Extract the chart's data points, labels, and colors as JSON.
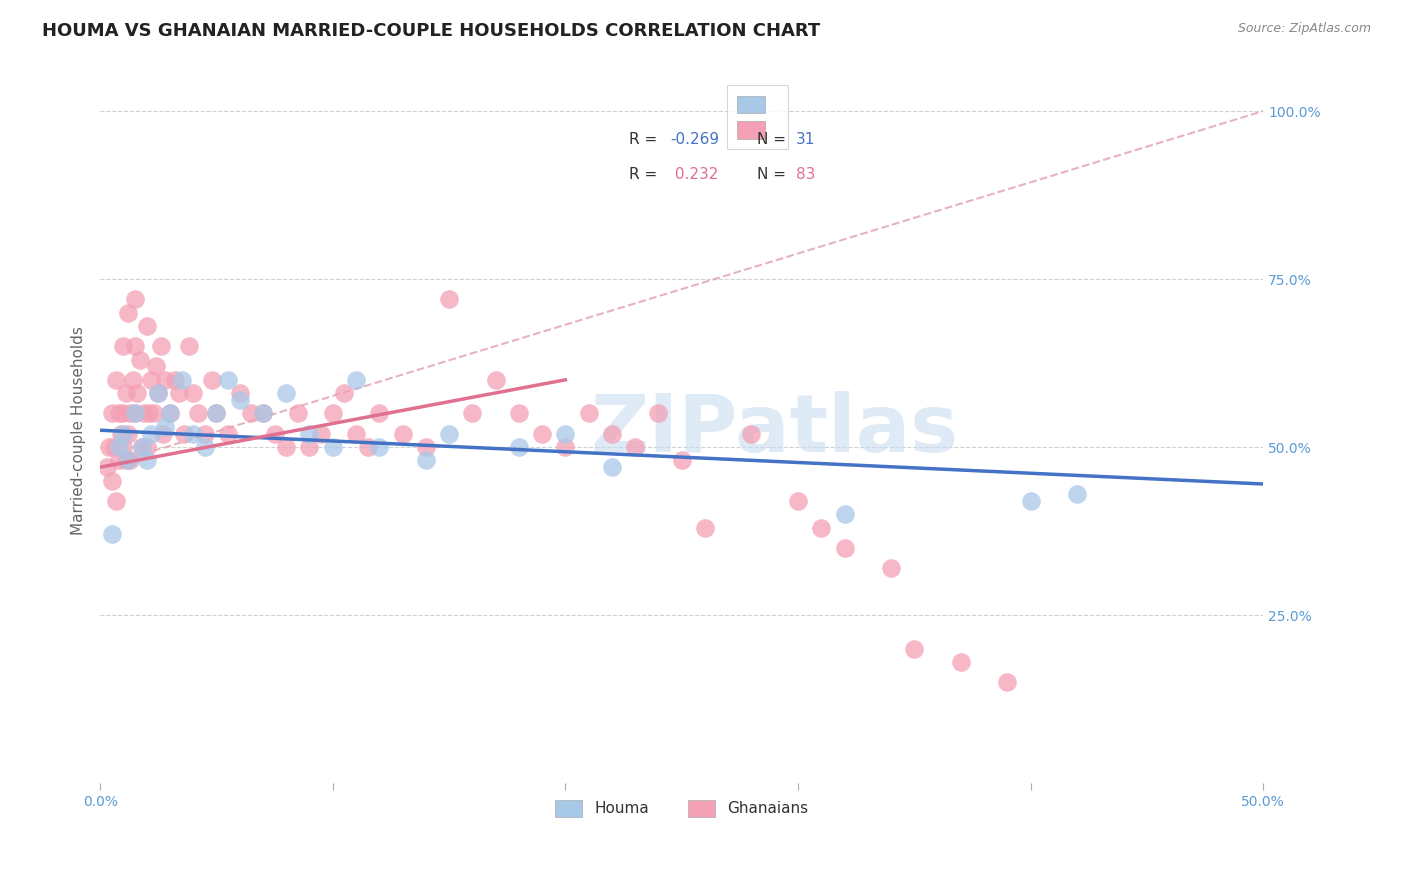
{
  "title": "HOUMA VS GHANAIAN MARRIED-COUPLE HOUSEHOLDS CORRELATION CHART",
  "source": "Source: ZipAtlas.com",
  "ylabel_text": "Married-couple Households",
  "xmin": 0.0,
  "xmax": 0.5,
  "ymin": 0.0,
  "ymax": 1.05,
  "houma_color": "#a8c8e8",
  "ghanaian_color": "#f4a0b5",
  "houma_line_color": "#4472c4",
  "ghanaian_line_color": "#e07090",
  "dashed_line_color": "#e0a0b0",
  "houma_R": -0.269,
  "houma_N": 31,
  "ghanaian_R": 0.232,
  "ghanaian_N": 83,
  "legend_label_houma": "Houma",
  "legend_label_ghanaian": "Ghanaians",
  "houma_x": [
    0.005,
    0.008,
    0.01,
    0.012,
    0.015,
    0.018,
    0.02,
    0.022,
    0.025,
    0.028,
    0.03,
    0.035,
    0.04,
    0.045,
    0.05,
    0.055,
    0.06,
    0.07,
    0.08,
    0.09,
    0.1,
    0.11,
    0.12,
    0.14,
    0.15,
    0.18,
    0.2,
    0.22,
    0.32,
    0.4,
    0.42
  ],
  "houma_y": [
    0.37,
    0.5,
    0.52,
    0.48,
    0.55,
    0.5,
    0.48,
    0.52,
    0.58,
    0.53,
    0.55,
    0.6,
    0.52,
    0.5,
    0.55,
    0.6,
    0.57,
    0.55,
    0.58,
    0.52,
    0.5,
    0.6,
    0.5,
    0.48,
    0.52,
    0.5,
    0.52,
    0.47,
    0.4,
    0.42,
    0.43
  ],
  "ghanaian_x": [
    0.003,
    0.004,
    0.005,
    0.005,
    0.006,
    0.007,
    0.007,
    0.008,
    0.008,
    0.009,
    0.01,
    0.01,
    0.01,
    0.011,
    0.011,
    0.012,
    0.012,
    0.013,
    0.013,
    0.014,
    0.015,
    0.015,
    0.015,
    0.016,
    0.017,
    0.018,
    0.019,
    0.02,
    0.02,
    0.021,
    0.022,
    0.023,
    0.024,
    0.025,
    0.026,
    0.027,
    0.028,
    0.03,
    0.032,
    0.034,
    0.036,
    0.038,
    0.04,
    0.042,
    0.045,
    0.048,
    0.05,
    0.055,
    0.06,
    0.065,
    0.07,
    0.075,
    0.08,
    0.085,
    0.09,
    0.095,
    0.1,
    0.105,
    0.11,
    0.115,
    0.12,
    0.13,
    0.14,
    0.15,
    0.16,
    0.17,
    0.18,
    0.19,
    0.2,
    0.21,
    0.22,
    0.23,
    0.24,
    0.25,
    0.26,
    0.28,
    0.3,
    0.31,
    0.32,
    0.34,
    0.35,
    0.37,
    0.39
  ],
  "ghanaian_y": [
    0.47,
    0.5,
    0.45,
    0.55,
    0.5,
    0.6,
    0.42,
    0.55,
    0.48,
    0.52,
    0.65,
    0.5,
    0.55,
    0.48,
    0.58,
    0.7,
    0.52,
    0.55,
    0.48,
    0.6,
    0.72,
    0.55,
    0.65,
    0.58,
    0.63,
    0.5,
    0.55,
    0.68,
    0.5,
    0.55,
    0.6,
    0.55,
    0.62,
    0.58,
    0.65,
    0.52,
    0.6,
    0.55,
    0.6,
    0.58,
    0.52,
    0.65,
    0.58,
    0.55,
    0.52,
    0.6,
    0.55,
    0.52,
    0.58,
    0.55,
    0.55,
    0.52,
    0.5,
    0.55,
    0.5,
    0.52,
    0.55,
    0.58,
    0.52,
    0.5,
    0.55,
    0.52,
    0.5,
    0.72,
    0.55,
    0.6,
    0.55,
    0.52,
    0.5,
    0.55,
    0.52,
    0.5,
    0.55,
    0.48,
    0.38,
    0.52,
    0.42,
    0.38,
    0.35,
    0.32,
    0.2,
    0.18,
    0.15
  ],
  "houma_line_x": [
    0.0,
    0.5
  ],
  "houma_line_y": [
    0.525,
    0.445
  ],
  "ghanaian_line_x": [
    0.0,
    0.2
  ],
  "ghanaian_line_y": [
    0.47,
    0.6
  ],
  "dashed_line_x": [
    0.0,
    0.5
  ],
  "dashed_line_y": [
    0.47,
    1.0
  ],
  "watermark_text": "ZIPatlas",
  "watermark_color": "#c8ddf0",
  "background_color": "#ffffff",
  "grid_color": "#cccccc",
  "tick_color": "#5b9bd5",
  "title_fontsize": 13,
  "axis_label_fontsize": 11,
  "tick_fontsize": 10,
  "legend_R_color": "#333333",
  "legend_N_color": "#5b9bd5"
}
